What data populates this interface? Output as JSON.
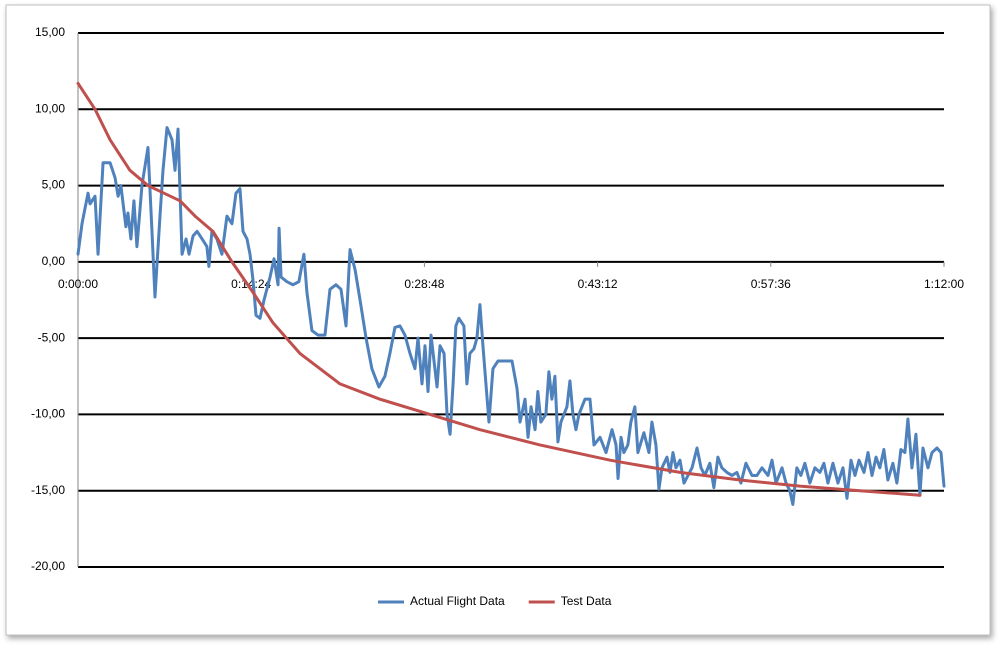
{
  "chart_data": {
    "type": "line",
    "xlim": [
      0,
      4320
    ],
    "xticks": [
      {
        "value": 0,
        "label": "0:00:00"
      },
      {
        "value": 864,
        "label": "0:14:24"
      },
      {
        "value": 1728,
        "label": "0:28:48"
      },
      {
        "value": 2592,
        "label": "0:43:12"
      },
      {
        "value": 3456,
        "label": "0:57:36"
      },
      {
        "value": 4320,
        "label": "1:12:00"
      }
    ],
    "ylim": [
      -20,
      15
    ],
    "yticks": [
      {
        "value": 15,
        "label": "15,00"
      },
      {
        "value": 10,
        "label": "10,00"
      },
      {
        "value": 5,
        "label": "5,00"
      },
      {
        "value": 0,
        "label": "0,00"
      },
      {
        "value": -5,
        "label": "-5,00"
      },
      {
        "value": -10,
        "label": "-10,00"
      },
      {
        "value": -15,
        "label": "-15,00"
      },
      {
        "value": -20,
        "label": "-20,00"
      }
    ],
    "grid": true,
    "legend": "bottom",
    "series": [
      {
        "name": "Actual Flight Data",
        "color": "#4f81bd",
        "x": [
          0,
          20,
          50,
          60,
          85,
          100,
          125,
          160,
          185,
          200,
          214,
          239,
          249,
          264,
          279,
          294,
          319,
          349,
          369,
          384,
          409,
          424,
          444,
          469,
          484,
          499,
          519,
          539,
          554,
          574,
          594,
          619,
          643,
          653,
          668,
          693,
          718,
          743,
          768,
          788,
          808,
          823,
          843,
          858,
          873,
          888,
          908,
          928,
          958,
          978,
          998,
          1003,
          1013,
          1042,
          1072,
          1102,
          1127,
          1142,
          1167,
          1197,
          1232,
          1257,
          1287,
          1312,
          1337,
          1357,
          1382,
          1407,
          1437,
          1466,
          1501,
          1531,
          1556,
          1581,
          1606,
          1631,
          1656,
          1681,
          1696,
          1716,
          1731,
          1746,
          1761,
          1776,
          1791,
          1806,
          1826,
          1841,
          1856,
          1871,
          1885,
          1900,
          1925,
          1940,
          1955,
          1975,
          1990,
          2005,
          2020,
          2035,
          2050,
          2070,
          2095,
          2130,
          2165,
          2190,
          2205,
          2230,
          2245,
          2260,
          2280,
          2294,
          2309,
          2334,
          2349,
          2364,
          2379,
          2394,
          2409,
          2424,
          2439,
          2454,
          2469,
          2484,
          2499,
          2514,
          2529,
          2554,
          2574,
          2604,
          2634,
          2664,
          2684,
          2694,
          2709,
          2723,
          2743,
          2758,
          2778,
          2793,
          2823,
          2848,
          2863,
          2883,
          2898,
          2913,
          2938,
          2953,
          2968,
          2983,
          3003,
          3023,
          3043,
          3063,
          3088,
          3108,
          3127,
          3152,
          3172,
          3192,
          3212,
          3237,
          3262,
          3287,
          3307,
          3332,
          3362,
          3387,
          3412,
          3442,
          3462,
          3482,
          3512,
          3532,
          3551,
          3566,
          3586,
          3606,
          3626,
          3651,
          3676,
          3701,
          3721,
          3741,
          3766,
          3791,
          3816,
          3836,
          3856,
          3876,
          3896,
          3921,
          3941,
          3961,
          3981,
          4000,
          4020,
          4040,
          4065,
          4085,
          4105,
          4125,
          4140,
          4160,
          4180,
          4200,
          4215,
          4240,
          4260,
          4285,
          4305,
          4320
        ],
        "values": [
          0.5,
          2.5,
          4.5,
          3.8,
          4.3,
          0.5,
          6.5,
          6.5,
          5.5,
          4.3,
          5,
          2.3,
          3.2,
          1.5,
          4,
          1,
          5,
          7.5,
          2,
          -2.3,
          3,
          6,
          8.8,
          8,
          6,
          8.7,
          0.5,
          1.5,
          0.5,
          1.7,
          2,
          1.5,
          1,
          -0.3,
          2,
          1.5,
          0.5,
          3,
          2.5,
          4.5,
          4.8,
          2,
          1.5,
          0.5,
          -1.2,
          -3.5,
          -3.7,
          -2.5,
          -1,
          0.2,
          -1.5,
          2.2,
          -1,
          -1.3,
          -1.5,
          -1.3,
          0.5,
          -2,
          -4.5,
          -4.8,
          -4.8,
          -1.8,
          -1.5,
          -1.8,
          -4.2,
          0.8,
          -0.5,
          -2.5,
          -5,
          -7,
          -8.2,
          -7.5,
          -6,
          -4.3,
          -4.2,
          -4.8,
          -6,
          -7,
          -5,
          -8,
          -5.5,
          -8.5,
          -4.8,
          -6.5,
          -8.2,
          -5.5,
          -6,
          -10,
          -11.3,
          -8,
          -4.2,
          -3.7,
          -4.2,
          -8,
          -6,
          -5.7,
          -5,
          -2.8,
          -5.5,
          -8,
          -10.5,
          -7,
          -6.5,
          -6.5,
          -6.5,
          -8.3,
          -10.5,
          -9,
          -11.5,
          -9.5,
          -11,
          -8.5,
          -10.5,
          -10,
          -7.2,
          -9,
          -7.5,
          -11.8,
          -10.5,
          -10,
          -9.5,
          -7.8,
          -10,
          -11,
          -10,
          -9.5,
          -9,
          -9,
          -12,
          -11.5,
          -12.5,
          -11,
          -12,
          -14.2,
          -11.5,
          -12.5,
          -12,
          -10.5,
          -9.5,
          -12.5,
          -11.2,
          -12.5,
          -10.5,
          -12,
          -14.9,
          -13.5,
          -12.8,
          -13.8,
          -12.5,
          -13.5,
          -13,
          -14.5,
          -14,
          -13.5,
          -12.2,
          -13.5,
          -14,
          -13.2,
          -14.8,
          -12.8,
          -13.5,
          -13.8,
          -14,
          -13.8,
          -14.5,
          -13.2,
          -14,
          -14,
          -13.5,
          -14,
          -13,
          -14.5,
          -13.5,
          -14.5,
          -15,
          -15.9,
          -13.5,
          -14,
          -13.2,
          -14.5,
          -13.5,
          -13.8,
          -13.2,
          -14.5,
          -13.2,
          -14.5,
          -13.5,
          -15.5,
          -13,
          -14,
          -13,
          -13.8,
          -12.5,
          -14,
          -12.8,
          -13.5,
          -12.3,
          -14.3,
          -13.2,
          -14.5,
          -12.3,
          -12.5,
          -10.3,
          -13.5,
          -11.3,
          -15.3,
          -12.2,
          -13.5,
          -12.5,
          -12.2,
          -12.5,
          -14.7
        ]
      },
      {
        "name": "Test Data",
        "color": "#c0504d",
        "x": [
          0,
          85,
          160,
          259,
          349,
          509,
          584,
          673,
          768,
          873,
          973,
          1107,
          1307,
          1506,
          1756,
          2005,
          2304,
          2654,
          3003,
          3302,
          3601,
          3901,
          4200
        ],
        "values": [
          11.7,
          10,
          8,
          6,
          5,
          4,
          3,
          2,
          0,
          -2,
          -4,
          -6,
          -8,
          -9,
          -10,
          -11,
          -12,
          -13,
          -13.8,
          -14.3,
          -14.7,
          -15,
          -15.3
        ]
      }
    ]
  }
}
